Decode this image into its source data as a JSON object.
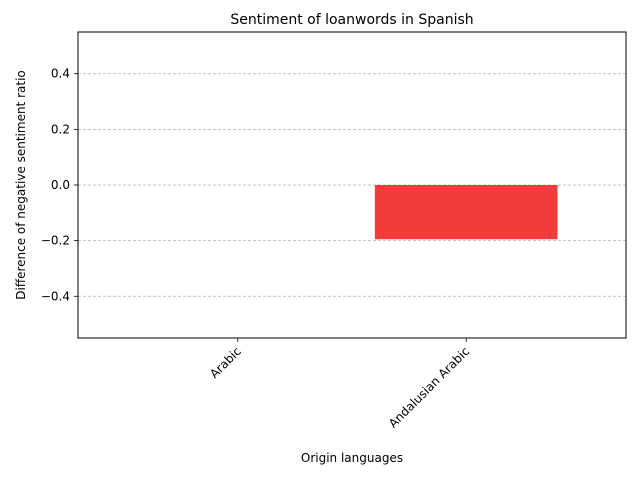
{
  "chart_data": {
    "type": "bar",
    "title": "Sentiment of loanwords in Spanish",
    "xlabel": "Origin languages",
    "ylabel": "Difference of negative sentiment ratio",
    "categories": [
      "Arabic",
      "Andalusian Arabic"
    ],
    "values": [
      0.0,
      -0.195
    ],
    "ylim": [
      -0.55,
      0.55
    ],
    "yticks": [
      -0.4,
      -0.2,
      0.0,
      0.2,
      0.4
    ],
    "ytick_labels": [
      "−0.4",
      "−0.2",
      "0.0",
      "0.2",
      "0.4"
    ],
    "grid": "y-dashed",
    "bar_color": "#f43c3c",
    "x_tick_rotation": "45"
  }
}
